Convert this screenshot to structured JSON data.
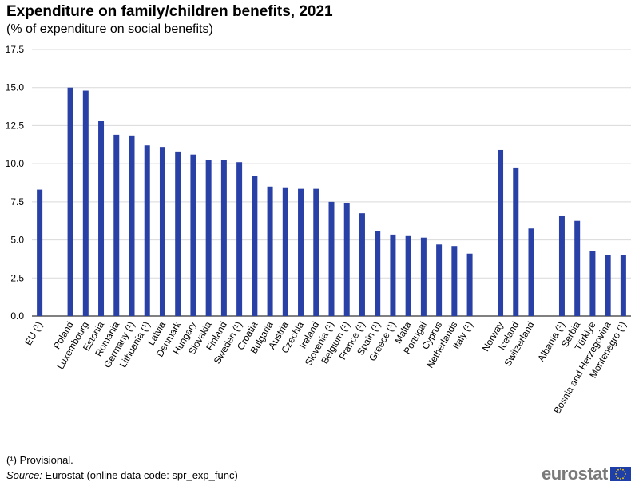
{
  "chart_data": {
    "type": "bar",
    "title": "Expenditure on family/children benefits, 2021",
    "subtitle": "(% of expenditure on social benefits)",
    "xlabel": "",
    "ylabel": "",
    "ylim": [
      0,
      17.5
    ],
    "yticks": [
      "0.0",
      "2.5",
      "5.0",
      "7.5",
      "10.0",
      "12.5",
      "15.0",
      "17.5"
    ],
    "grid": true,
    "color": "#2941a6",
    "categories": [
      "EU (¹)",
      "",
      "Poland",
      "Luxembourg",
      "Estonia",
      "Romania",
      "Germany (¹)",
      "Lithuania (¹)",
      "Latvia",
      "Denmark",
      "Hungary",
      "Slovakia",
      "Finland",
      "Sweden (¹)",
      "Croatia",
      "Bulgaria",
      "Austria",
      "Czechia",
      "Ireland",
      "Slovenia (¹)",
      "Belgium (¹)",
      "France (¹)",
      "Spain (¹)",
      "Greece (¹)",
      "Malta",
      "Portugal",
      "Cyprus",
      "Netherlands",
      "Italy (¹)",
      "",
      "Norway",
      "Iceland",
      "Switzerland",
      "",
      "Albania (¹)",
      "Serbia",
      "Türkiye",
      "Bosnia and Herzegovina",
      "Montenegro (¹)"
    ],
    "values": [
      8.3,
      null,
      15.0,
      14.8,
      12.8,
      11.9,
      11.85,
      11.2,
      11.1,
      10.8,
      10.6,
      10.25,
      10.25,
      10.1,
      9.2,
      8.5,
      8.45,
      8.35,
      8.35,
      7.5,
      7.4,
      6.75,
      5.6,
      5.35,
      5.25,
      5.15,
      4.7,
      4.6,
      4.1,
      null,
      10.9,
      9.75,
      5.75,
      null,
      6.55,
      6.25,
      4.25,
      4.0,
      4.0
    ]
  },
  "footnote": "(¹) Provisional.",
  "source": {
    "label": "Source:",
    "text": " Eurostat (online data code: spr_exp_func)"
  },
  "logo": {
    "text": "eurostat"
  }
}
